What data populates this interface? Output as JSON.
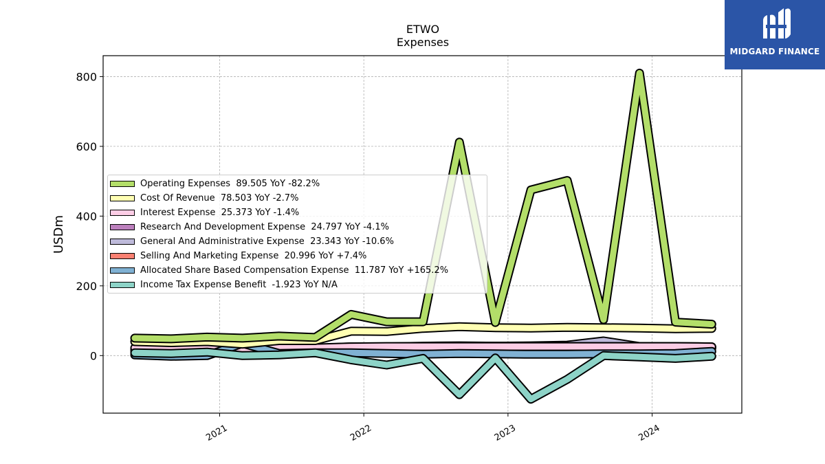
{
  "logo": {
    "text": "MIDGARD FINANCE",
    "icon": "midgard-logo-icon"
  },
  "chart_data": {
    "type": "area",
    "title": "ETWO",
    "subtitle": "Expenses",
    "ylabel": "USDm",
    "xlabel": "",
    "ylim": [
      -165,
      860
    ],
    "xlim": [
      "2020-03-12",
      "2024-08-15"
    ],
    "yticks": [
      0,
      200,
      400,
      600,
      800
    ],
    "xticks": [
      "2021",
      "2022",
      "2023",
      "2024"
    ],
    "xtick_dates": [
      "2021-01-01",
      "2022-01-01",
      "2023-01-01",
      "2024-01-01"
    ],
    "grid": true,
    "legend_position": "center-left",
    "x": [
      "2020-05-31",
      "2020-08-31",
      "2020-11-30",
      "2021-02-28",
      "2021-05-31",
      "2021-08-31",
      "2021-11-30",
      "2022-02-28",
      "2022-05-31",
      "2022-08-31",
      "2022-11-30",
      "2023-02-28",
      "2023-05-31",
      "2023-08-31",
      "2023-11-30",
      "2024-02-29",
      "2024-05-31"
    ],
    "series": [
      {
        "name": "Operating Expenses",
        "legend": "Operating Expenses  89.505 YoY -82.2%",
        "color": "#b3de69",
        "values": [
          50,
          48,
          53,
          50,
          56,
          52,
          118,
          97,
          97,
          612,
          95,
          475,
          502,
          103,
          810,
          96,
          90
        ]
      },
      {
        "name": "Cost Of Revenue",
        "legend": "Cost Of Revenue  78.503 YoY -2.7%",
        "color": "#ffffb3",
        "values": [
          40,
          37,
          40,
          33,
          43,
          43,
          70,
          69,
          78,
          83,
          80,
          79,
          81,
          80,
          79,
          77,
          78
        ]
      },
      {
        "name": "Interest Expense",
        "legend": "Interest Expense  25.373 YoY -1.4%",
        "color": "#fccde5",
        "values": [
          22,
          21,
          22,
          18,
          22,
          22,
          25,
          26,
          26,
          26,
          26,
          26,
          26,
          26,
          26,
          26,
          25
        ]
      },
      {
        "name": "Research And Development Expense",
        "legend": "Research And Development Expense  24.797 YoY -4.1%",
        "color": "#bc80bd",
        "values": [
          20,
          19,
          20,
          17,
          20,
          21,
          25,
          25,
          27,
          28,
          27,
          27,
          26,
          26,
          26,
          26,
          25
        ]
      },
      {
        "name": "General And Administrative Expense",
        "legend": "General And Administrative Expense  23.343 YoY -10.6%",
        "color": "#bebada",
        "values": [
          18,
          18,
          19,
          16,
          19,
          20,
          24,
          24,
          25,
          27,
          27,
          28,
          30,
          42,
          26,
          25,
          23
        ]
      },
      {
        "name": "Selling And Marketing Expense",
        "legend": "Selling And Marketing Expense  20.996 YoY +7.4%",
        "color": "#fb8072",
        "values": [
          14,
          13,
          14,
          10,
          14,
          15,
          18,
          17,
          19,
          20,
          19,
          19,
          19,
          20,
          20,
          21,
          21
        ]
      },
      {
        "name": "Allocated Share Based Compensation Expense",
        "legend": "Allocated Share Based Compensation Expense  11.787 YoY +165.2%",
        "color": "#80b1d3",
        "values": [
          2,
          -2,
          0,
          35,
          6,
          8,
          8,
          6,
          4,
          6,
          5,
          4,
          4,
          5,
          5,
          6,
          12
        ]
      },
      {
        "name": "Income Tax Expense Benefit",
        "legend": "Income Tax Expense Benefit  -1.923 YoY N/A",
        "color": "#8dd3c7",
        "values": [
          8,
          6,
          10,
          0,
          2,
          8,
          -12,
          -27,
          -8,
          -112,
          -7,
          -125,
          -68,
          0,
          -4,
          -8,
          -2
        ]
      }
    ]
  }
}
